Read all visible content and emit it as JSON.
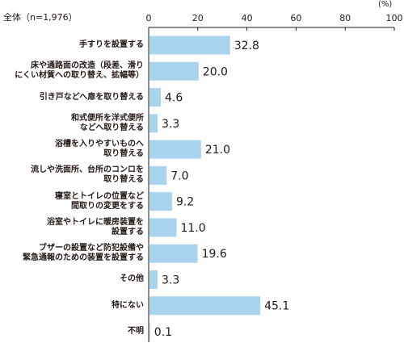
{
  "chart_data": {
    "type": "bar",
    "orientation": "horizontal",
    "group_label": "全体（n=1,976）",
    "unit_label": "(%)",
    "xlim": [
      0,
      100
    ],
    "ticks": [
      0,
      20,
      40,
      60,
      80,
      100
    ],
    "grid": false,
    "colors": {
      "bar": "#a9d4ef",
      "axis": "#231815"
    },
    "categories": [
      [
        "手すりを設置する"
      ],
      [
        "床や通路面の改造（段差、滑り",
        "にくい材質への取り替え、拡幅等）"
      ],
      [
        "引き戸などへ扉を取り替える"
      ],
      [
        "和式便所を洋式便所",
        "などへ取り替える"
      ],
      [
        "浴槽を入りやすいものへ",
        "取り替える"
      ],
      [
        "流しや洗面所、台所のコンロを",
        "取り替える"
      ],
      [
        "寝室とトイレの位置など",
        "間取りの変更をする"
      ],
      [
        "浴室やトイレに暖房装置を",
        "設置する"
      ],
      [
        "ブザーの設置など防犯設備や",
        "緊急通報のための装置を設置する"
      ],
      [
        "その他"
      ],
      [
        "特にない"
      ],
      [
        "不明"
      ]
    ],
    "values": [
      32.8,
      20.0,
      4.6,
      3.3,
      21.0,
      7.0,
      9.2,
      11.0,
      19.6,
      3.3,
      45.1,
      0.1
    ],
    "value_labels": [
      "32.8",
      "20.0",
      "4.6",
      "3.3",
      "21.0",
      "7.0",
      "9.2",
      "11.0",
      "19.6",
      "3.3",
      "45.1",
      "0.1"
    ]
  }
}
